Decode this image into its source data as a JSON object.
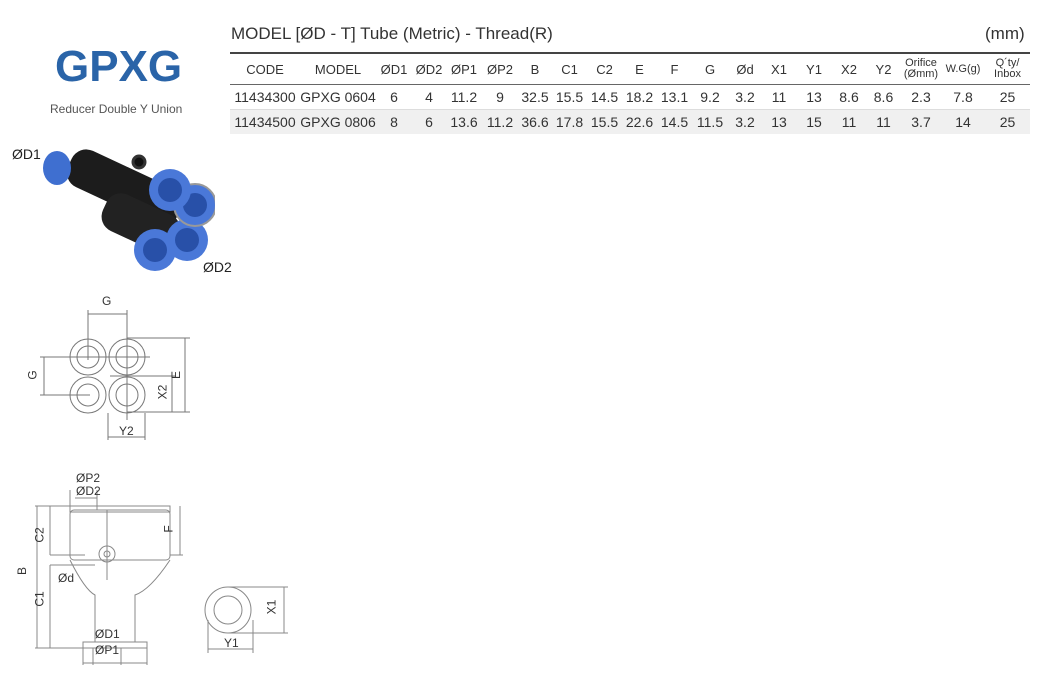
{
  "header": {
    "title": "GPXG",
    "subtitle": "Reducer Double Y Union",
    "model_heading": "MODEL [ØD - T]  Tube (Metric) - Thread(R)",
    "unit": "(mm)"
  },
  "table": {
    "columns": [
      "CODE",
      "MODEL",
      "ØD1",
      "ØD2",
      "ØP1",
      "ØP2",
      "B",
      "C1",
      "C2",
      "E",
      "F",
      "G",
      "Ød",
      "X1",
      "Y1",
      "X2",
      "Y2",
      "Orifice (Ømm)",
      "W.G(g)",
      "Q´ty/ Inbox"
    ],
    "rows": [
      [
        "11434300",
        "GPXG 0604",
        "6",
        "4",
        "11.2",
        "9",
        "32.5",
        "15.5",
        "14.5",
        "18.2",
        "13.1",
        "9.2",
        "3.2",
        "11",
        "13",
        "8.6",
        "8.6",
        "2.3",
        "7.8",
        "25"
      ],
      [
        "11434500",
        "GPXG 0806",
        "8",
        "6",
        "13.6",
        "11.2",
        "36.6",
        "17.8",
        "15.5",
        "22.6",
        "14.5",
        "11.5",
        "3.2",
        "13",
        "15",
        "11",
        "11",
        "3.7",
        "14",
        "25"
      ]
    ]
  },
  "photo": {
    "label_d1": "ØD1",
    "label_d2": "ØD2",
    "colors": {
      "body": "#1a1a1a",
      "collet": "#3f6fd0"
    }
  },
  "drawings": {
    "front": {
      "g_top": "G",
      "g_left": "G",
      "e": "E",
      "x2": "X2",
      "y2": "Y2"
    },
    "side": {
      "p2": "ØP2",
      "d2": "ØD2",
      "c2": "C2",
      "b": "B",
      "f": "F",
      "d": "Ød",
      "c1": "C1",
      "d1": "ØD1",
      "p1": "ØP1"
    },
    "end": {
      "x1": "X1",
      "y1": "Y1"
    }
  }
}
